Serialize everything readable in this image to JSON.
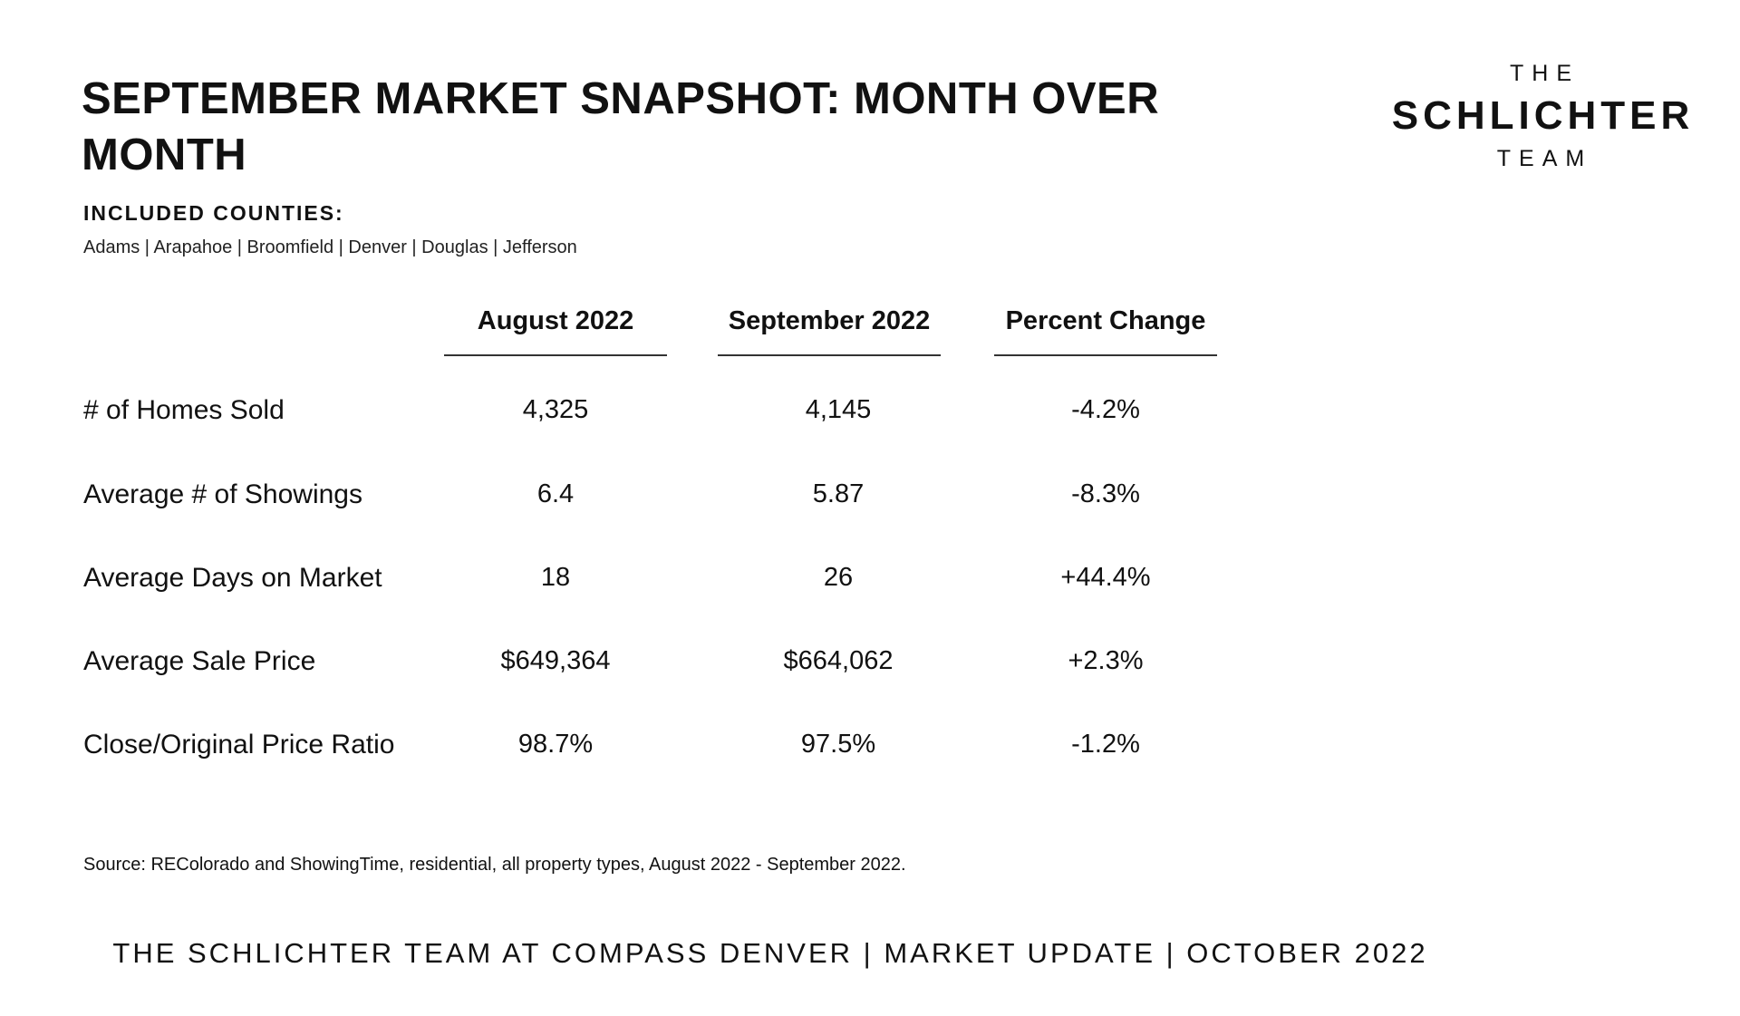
{
  "title": "SEPTEMBER MARKET SNAPSHOT: MONTH OVER MONTH",
  "logo": {
    "line1": "THE",
    "line2": "SCHLICHTER",
    "line3": "TEAM"
  },
  "counties": {
    "heading": "INCLUDED COUNTIES:",
    "list": "Adams | Arapahoe | Broomfield | Denver | Douglas | Jefferson"
  },
  "table": {
    "columns": [
      "August 2022",
      "September 2022",
      "Percent Change"
    ],
    "rows": [
      {
        "label": "# of Homes Sold",
        "values": [
          "4,325",
          "4,145",
          "-4.2%"
        ]
      },
      {
        "label": "Average # of Showings",
        "values": [
          "6.4",
          "5.87",
          "-8.3%"
        ]
      },
      {
        "label": "Average Days on Market",
        "values": [
          "18",
          "26",
          "+44.4%"
        ]
      },
      {
        "label": "Average Sale Price",
        "values": [
          "$649,364",
          "$664,062",
          "+2.3%"
        ]
      },
      {
        "label": "Close/Original Price Ratio",
        "values": [
          "98.7%",
          "97.5%",
          "-1.2%"
        ]
      }
    ]
  },
  "source": "Source: REColorado and ShowingTime, residential, all property types, August 2022 - September 2022.",
  "footer": "THE SCHLICHTER TEAM AT COMPASS DENVER | MARKET UPDATE | OCTOBER 2022"
}
